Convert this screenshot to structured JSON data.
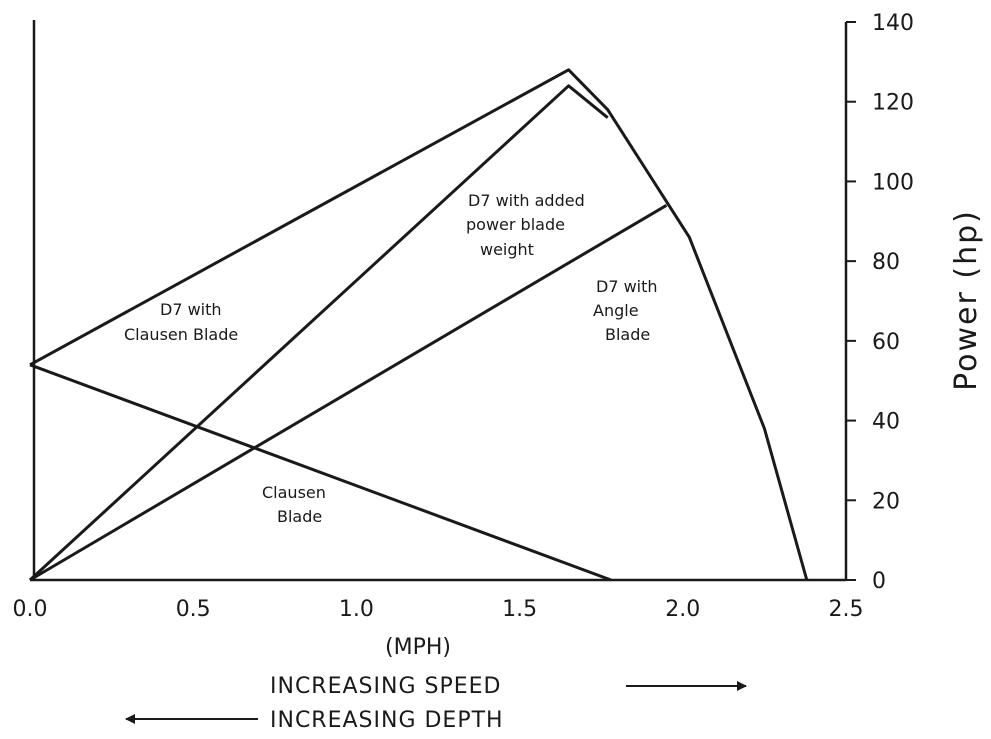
{
  "chart_data": {
    "type": "line",
    "title": "",
    "xlabel": "(MPH)",
    "ylabel": "Power (hp)",
    "xlim": [
      0,
      2.5
    ],
    "ylim": [
      0,
      140
    ],
    "x_ticks": [
      "0.0",
      "0.5",
      "1.0",
      "1.5",
      "2.0",
      "2.5"
    ],
    "y_ticks": [
      "0",
      "20",
      "40",
      "60",
      "80",
      "100",
      "120",
      "140"
    ],
    "y_axis_position": "right",
    "grid": false,
    "legend": "none",
    "series": [
      {
        "name": "D7 with Clausen Blade",
        "x": [
          0.0,
          1.65,
          1.77,
          2.02,
          2.25,
          2.38
        ],
        "y": [
          54,
          128,
          118,
          86,
          38,
          0
        ]
      },
      {
        "name": "D7 with added power blade weight",
        "x": [
          0.0,
          1.65,
          1.77
        ],
        "y": [
          0,
          124,
          116
        ]
      },
      {
        "name": "D7 with Angle Blade",
        "x": [
          0.0,
          1.95
        ],
        "y": [
          0,
          94
        ]
      },
      {
        "name": "Clausen Blade",
        "x": [
          0.0,
          1.78
        ],
        "y": [
          54,
          0
        ]
      }
    ],
    "footer": {
      "speed": "INCREASING SPEED",
      "depth": "INCREASING DEPTH"
    }
  }
}
